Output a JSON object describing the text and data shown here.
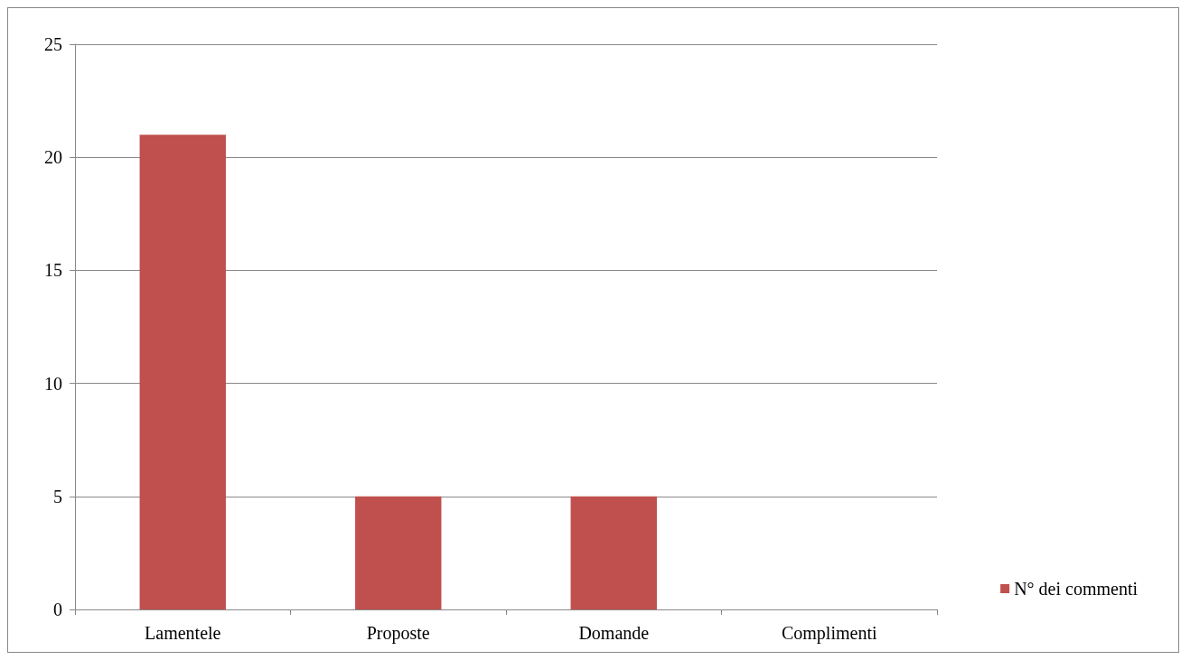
{
  "chart_data": {
    "type": "bar",
    "categories": [
      "Lamentele",
      "Proposte",
      "Domande",
      "Complimenti"
    ],
    "series": [
      {
        "name": "N° dei commenti",
        "color": "#c0504d",
        "values": [
          21,
          5,
          5,
          0
        ]
      }
    ],
    "ylim": [
      0,
      25
    ],
    "yticks": [
      0,
      5,
      10,
      15,
      20,
      25
    ],
    "grid": "y",
    "legend": "right"
  }
}
